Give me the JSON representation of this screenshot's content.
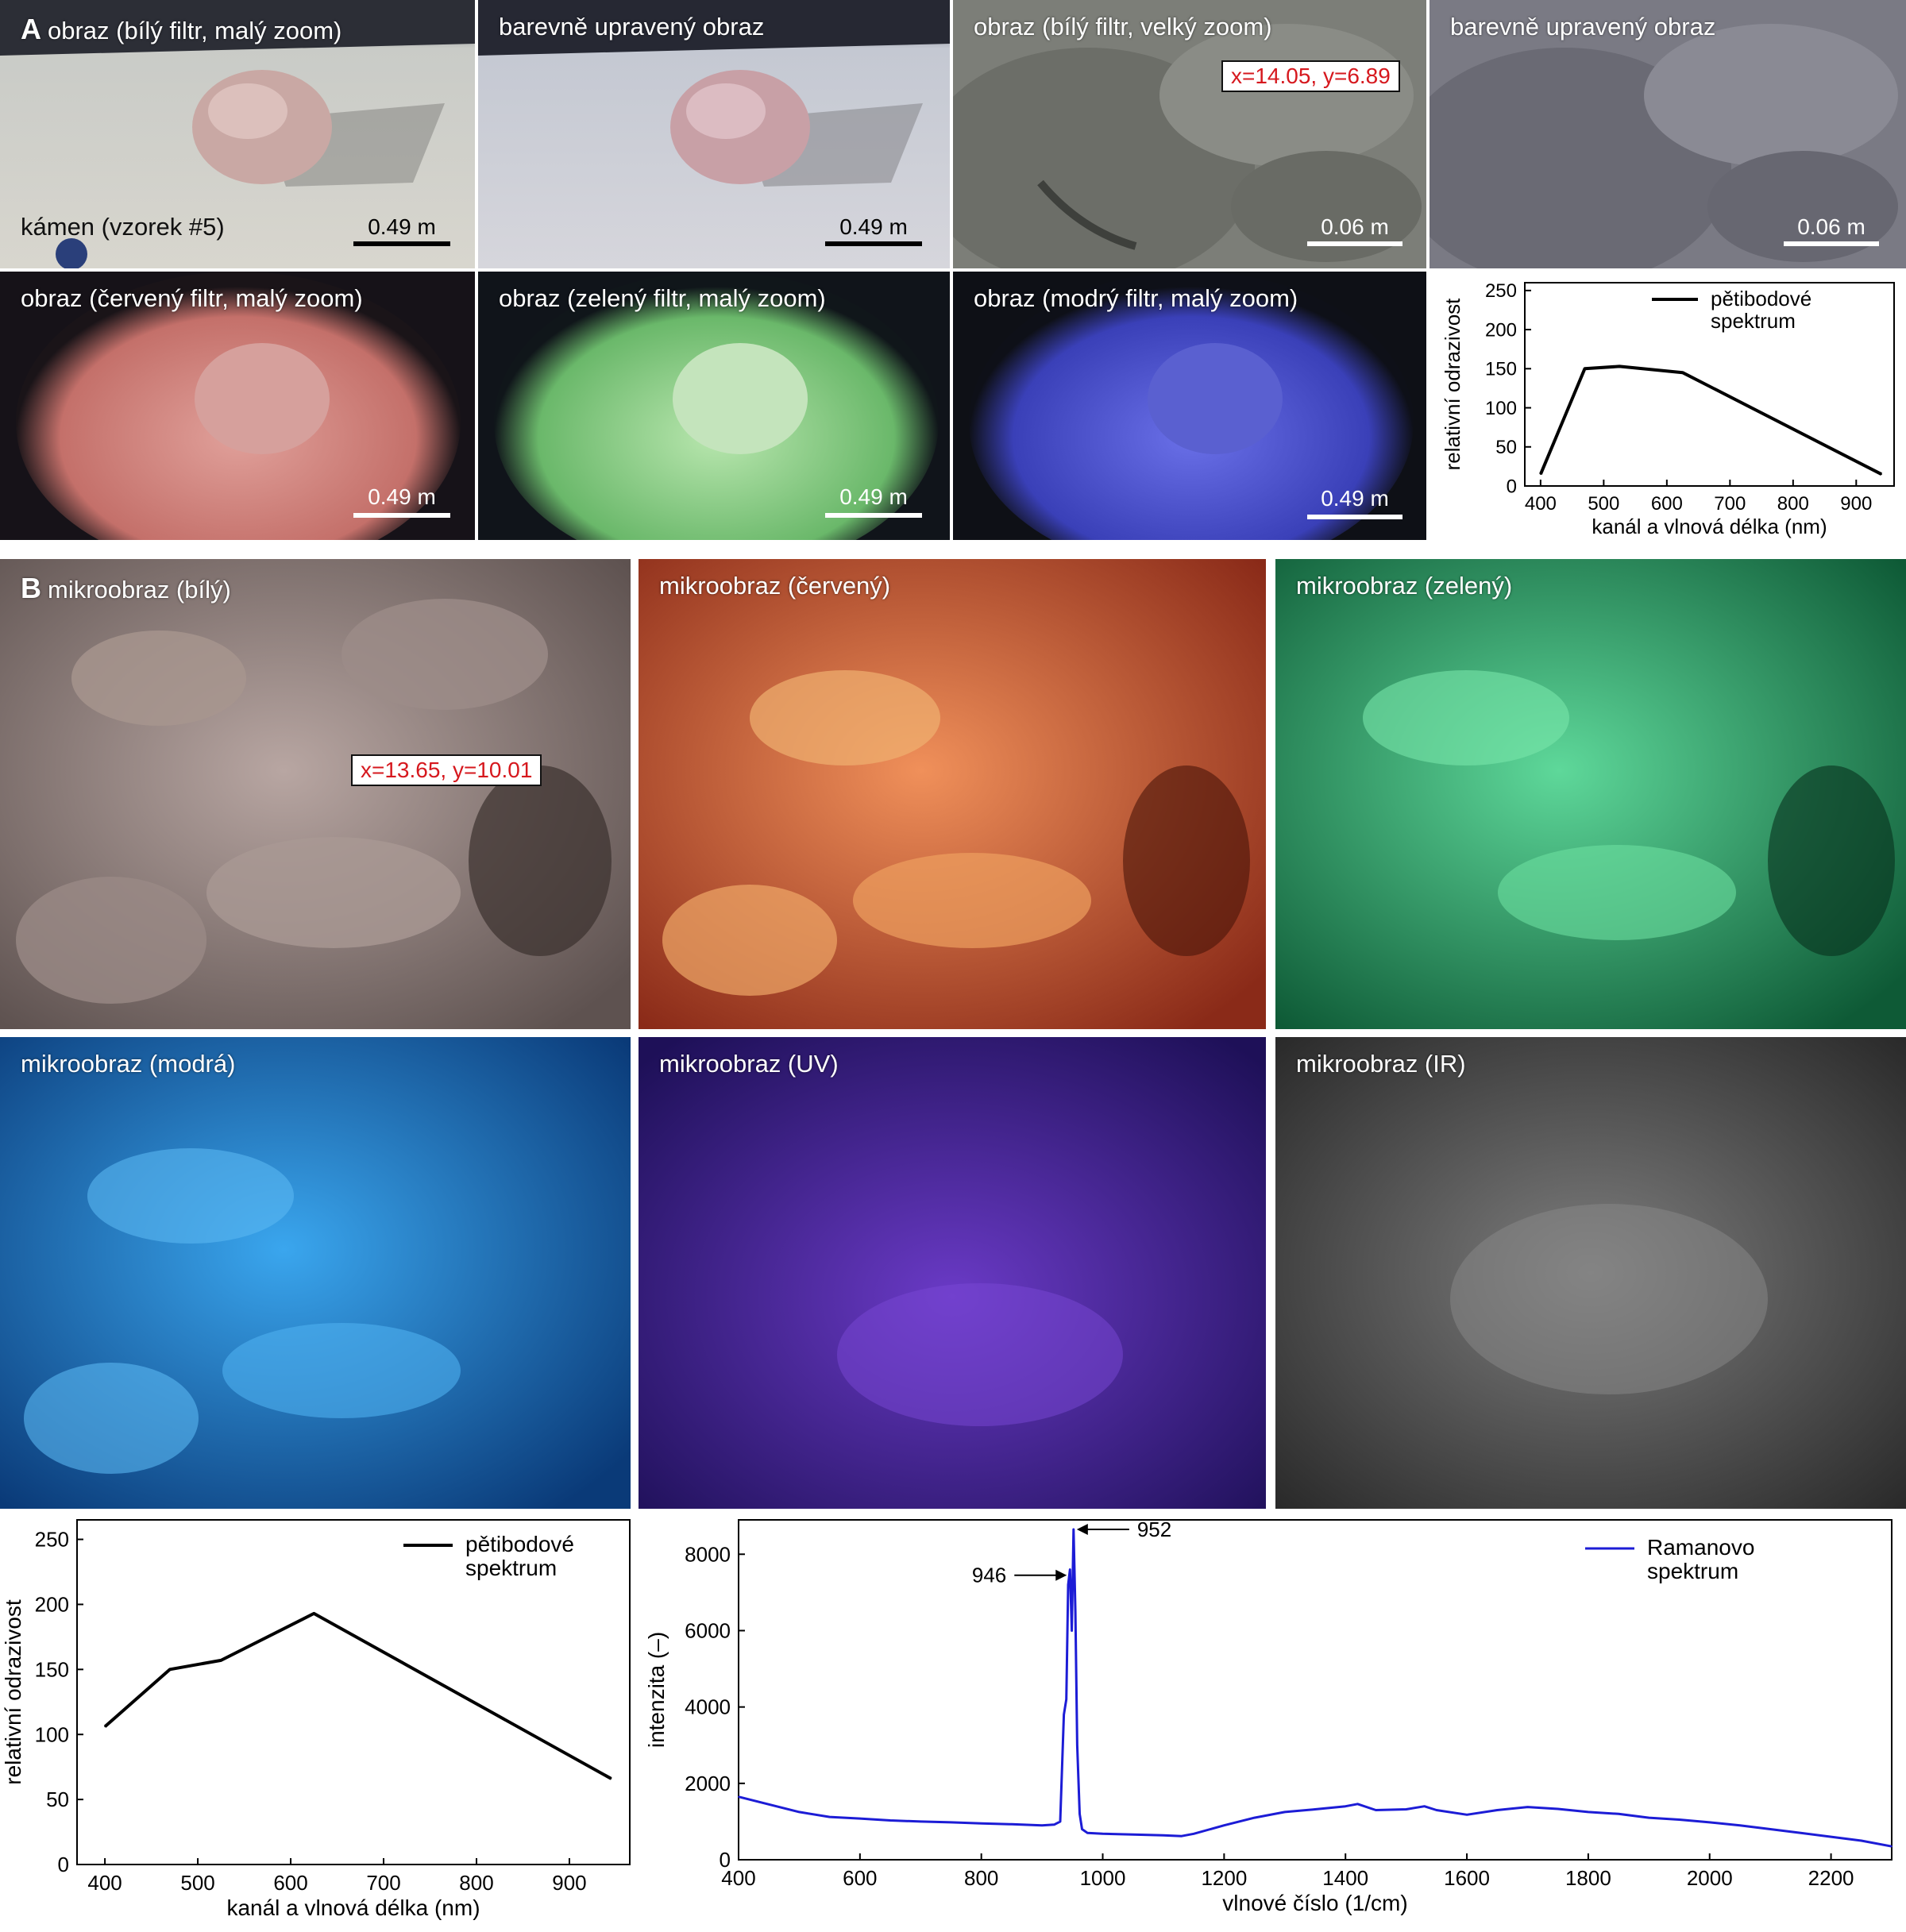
{
  "panel_a": {
    "letter": "A",
    "images": [
      {
        "caption": "obraz (bílý filtr, malý zoom)",
        "scale": "0.49 m",
        "sublabel": "kámen (vzorek #5)"
      },
      {
        "caption": "barevně upravený obraz",
        "scale": "0.49 m"
      },
      {
        "caption": "obraz (bílý filtr, velký zoom)",
        "scale": "0.06 m",
        "coord": "x=14.05, y=6.89"
      },
      {
        "caption": "barevně upravený obraz",
        "scale": "0.06 m"
      },
      {
        "caption": "obraz (červený filtr, malý zoom)",
        "scale": "0.49 m"
      },
      {
        "caption": "obraz (zelený filtr, malý zoom)",
        "scale": "0.49 m"
      },
      {
        "caption": "obraz (modrý filtr, malý zoom)",
        "scale": "0.49 m"
      }
    ]
  },
  "panel_b": {
    "letter": "B",
    "images": [
      {
        "caption": "mikroobraz (bílý)",
        "coord": "x=13.65, y=10.01"
      },
      {
        "caption": "mikroobraz (červený)"
      },
      {
        "caption": "mikroobraz (zelený)"
      },
      {
        "caption": "mikroobraz (modrá)"
      },
      {
        "caption": "mikroobraz (UV)"
      },
      {
        "caption": "mikroobraz (IR)"
      }
    ]
  },
  "chart_data": [
    {
      "type": "line",
      "x": [
        400,
        470,
        525,
        625,
        940
      ],
      "series": [
        {
          "name": "pětibodové spektrum",
          "values": [
            15,
            150,
            153,
            145,
            15
          ]
        }
      ],
      "xlabel": "kanál a vlnová délka (nm)",
      "ylabel": "relativní odrazivost",
      "xticks": [
        400,
        500,
        600,
        700,
        800,
        900
      ],
      "yticks": [
        0,
        50,
        100,
        150,
        200,
        250
      ],
      "legend": [
        "pětibodové",
        "spektrum"
      ],
      "xlim": [
        375,
        960
      ],
      "ylim": [
        0,
        260
      ],
      "color": "#000000"
    },
    {
      "type": "line",
      "x": [
        400,
        470,
        525,
        625,
        945
      ],
      "series": [
        {
          "name": "pětibodové spektrum",
          "values": [
            106,
            150,
            157,
            193,
            66
          ]
        }
      ],
      "xlabel": "kanál a vlnová délka (nm)",
      "ylabel": "relativní odrazivost",
      "xticks": [
        400,
        500,
        600,
        700,
        800,
        900
      ],
      "yticks": [
        0,
        50,
        100,
        150,
        200,
        250
      ],
      "legend": [
        "pětibodové",
        "spektrum"
      ],
      "xlim": [
        370,
        965
      ],
      "ylim": [
        0,
        265
      ],
      "color": "#000000"
    },
    {
      "type": "line",
      "x": [
        400,
        450,
        500,
        550,
        600,
        650,
        700,
        750,
        800,
        850,
        900,
        920,
        930,
        936,
        940,
        943,
        946,
        949,
        952,
        955,
        958,
        962,
        966,
        975,
        1000,
        1050,
        1100,
        1130,
        1150,
        1200,
        1250,
        1300,
        1350,
        1400,
        1420,
        1450,
        1500,
        1530,
        1550,
        1600,
        1650,
        1700,
        1750,
        1800,
        1850,
        1900,
        1950,
        2000,
        2050,
        2100,
        2150,
        2200,
        2250,
        2300
      ],
      "series": [
        {
          "name": "Ramanovo spektrum",
          "values": [
            1650,
            1450,
            1250,
            1120,
            1080,
            1030,
            1000,
            980,
            950,
            930,
            900,
            920,
            1000,
            3800,
            4200,
            7200,
            7600,
            6000,
            8650,
            6500,
            3000,
            1200,
            800,
            700,
            680,
            660,
            640,
            620,
            680,
            900,
            1100,
            1250,
            1320,
            1400,
            1460,
            1300,
            1320,
            1400,
            1300,
            1180,
            1300,
            1380,
            1330,
            1250,
            1200,
            1100,
            1050,
            980,
            900,
            800,
            700,
            600,
            500,
            350
          ]
        }
      ],
      "xlabel": "vlnové číslo (1/cm)",
      "ylabel": "intenzita (–)",
      "xticks": [
        400,
        600,
        800,
        1000,
        1200,
        1400,
        1600,
        1800,
        2000,
        2200
      ],
      "yticks": [
        0,
        2000,
        4000,
        6000,
        8000
      ],
      "legend": [
        "Ramanovo",
        "spektrum"
      ],
      "annotations": [
        "946",
        "952"
      ],
      "xlim": [
        400,
        2300
      ],
      "ylim": [
        0,
        8900
      ],
      "color": "#1c1cd6"
    }
  ]
}
